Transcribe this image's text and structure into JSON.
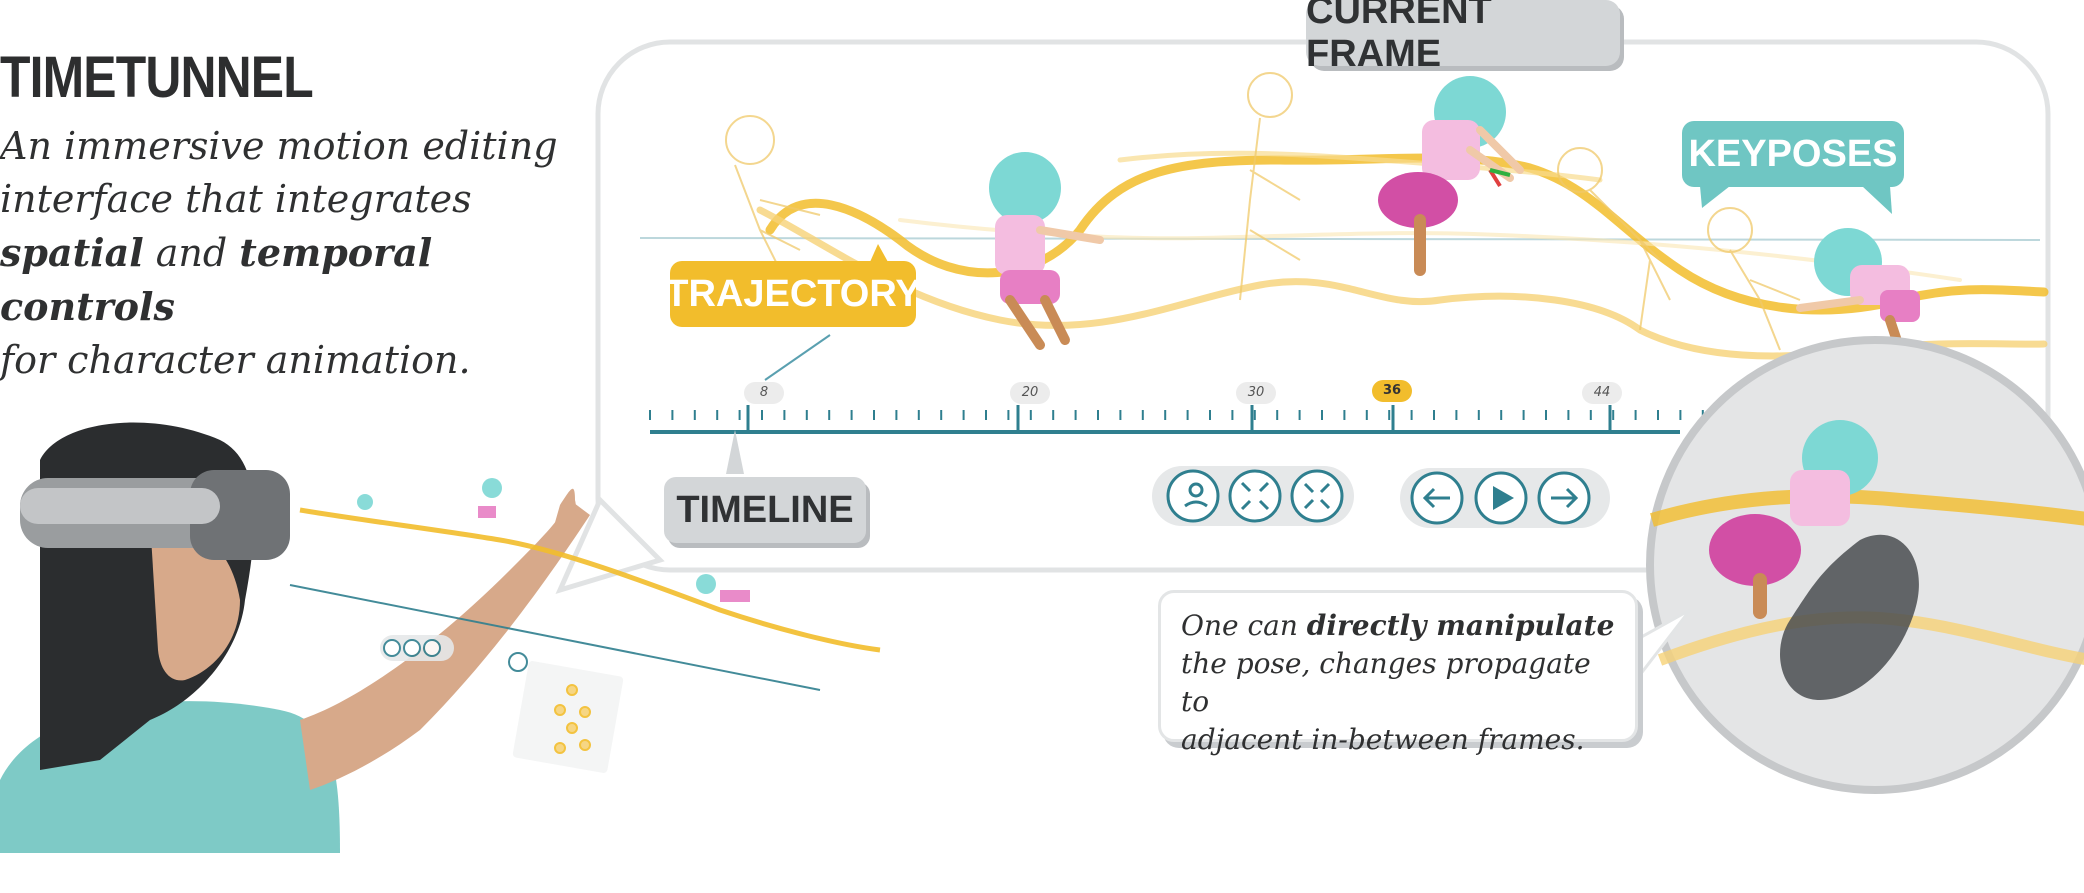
{
  "title": "TIMETUNNEL",
  "subtitle": {
    "line1": "An immersive motion editing",
    "line2": "interface that integrates",
    "line3_bold1": "spatial",
    "line3_mid": " and ",
    "line3_bold2": "temporal controls",
    "line4": "for character animation."
  },
  "labels": {
    "current_frame": "CURRENT FRAME",
    "keyposes": "KEYPOSES",
    "trajectory": "TRAJECTORY",
    "timeline": "TIMELINE"
  },
  "callout": {
    "pre": "One can ",
    "bold": "directly manipulate",
    "rest_line2": "the pose,  changes propagate to",
    "rest_line3": "adjacent in-between frames."
  },
  "timeline_ticks": {
    "t8": "8",
    "t20": "20",
    "t30": "30",
    "t36": "36",
    "t44": "44"
  },
  "controls": {
    "group1": [
      "loop-person-icon",
      "collapse-icon",
      "expand-icon"
    ],
    "group2": [
      "prev-arrow-icon",
      "play-icon",
      "next-arrow-icon"
    ]
  },
  "colors": {
    "trajectory": "#f2bd2c",
    "timeline": "#2f7f8f",
    "keyposes": "#6fc6c3",
    "label_gray": "#d3d6d8",
    "character_hair": "#7dd8d4",
    "character_body": "#e77fc4",
    "headset_person_shirt": "#7ecac6"
  }
}
